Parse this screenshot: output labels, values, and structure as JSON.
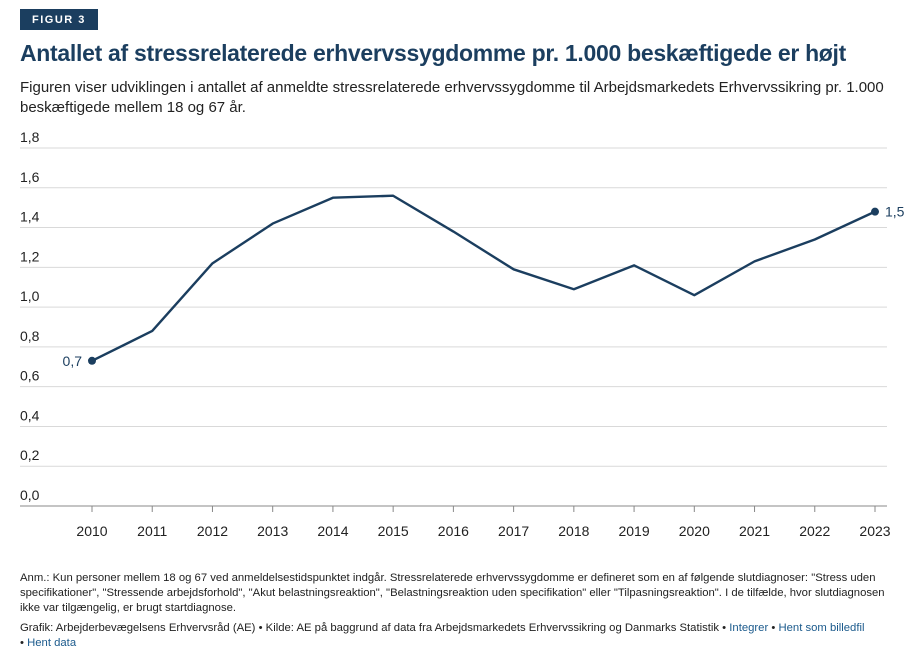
{
  "figure_label": "FIGUR 3",
  "title": "Antallet af stressrelaterede erhvervssygdomme pr. 1.000 beskæftigede er højt",
  "subtitle": "Figuren viser udviklingen i antallet af anmeldte stressrelaterede erhvervssygdomme til Arbejdsmarkedets Erhvervssikring pr. 1.000 beskæftigede mellem 18 og 67 år.",
  "note": "Anm.: Kun personer mellem 18 og 67 ved anmeldelsestidspunktet indgår. Stressrelaterede erhvervssygdomme er defineret som en af følgende slutdiagnoser: \"Stress uden specifikationer\", \"Stressende arbejdsforhold\", \"Akut belastningsreaktion\", \"Belastningsreaktion uden specifikation\" eller \"Tilpasningsreaktion\". I de tilfælde, hvor slutdiagnosen ikke var tilgængelig, er brugt startdiagnose.",
  "credits": {
    "text": "Grafik: Arbejderbevægelsens Erhvervsråd (AE) • Kilde: AE på baggrund af data fra Arbejdsmarkedets Erhvervssikring og Danmarks Statistik •",
    "link_embed": "Integrer",
    "separator": "•",
    "link_image": "Hent som billedfil",
    "link_data": "Hent data"
  },
  "colors": {
    "line": "#1b3e5f",
    "badge": "#1b3e5f",
    "grid": "#d9d9d9",
    "link": "#1b5a8c"
  },
  "chart_data": {
    "type": "line",
    "title": "Antallet af stressrelaterede erhvervssygdomme pr. 1.000 beskæftigede er højt",
    "xlabel": "",
    "ylabel": "",
    "ylim": [
      0,
      1.8
    ],
    "yticks": [
      0,
      0.2,
      0.4,
      0.6,
      0.8,
      1.0,
      1.2,
      1.4,
      1.6,
      1.8
    ],
    "ytick_labels": [
      "0,0",
      "0,2",
      "0,4",
      "0,6",
      "0,8",
      "1,0",
      "1,2",
      "1,4",
      "1,6",
      "1,8"
    ],
    "grid": true,
    "x": [
      "2010",
      "2011",
      "2012",
      "2013",
      "2014",
      "2015",
      "2016",
      "2017",
      "2018",
      "2019",
      "2020",
      "2021",
      "2022",
      "2023"
    ],
    "series": [
      {
        "name": "Stressrelaterede erhvervssygdomme pr. 1.000 beskæftigede",
        "values": [
          0.73,
          0.88,
          1.22,
          1.42,
          1.55,
          1.56,
          1.38,
          1.19,
          1.09,
          1.21,
          1.06,
          1.23,
          1.34,
          1.48
        ]
      }
    ],
    "annotations": [
      {
        "x": "2010",
        "label": "0,7"
      },
      {
        "x": "2023",
        "label": "1,5"
      }
    ]
  }
}
